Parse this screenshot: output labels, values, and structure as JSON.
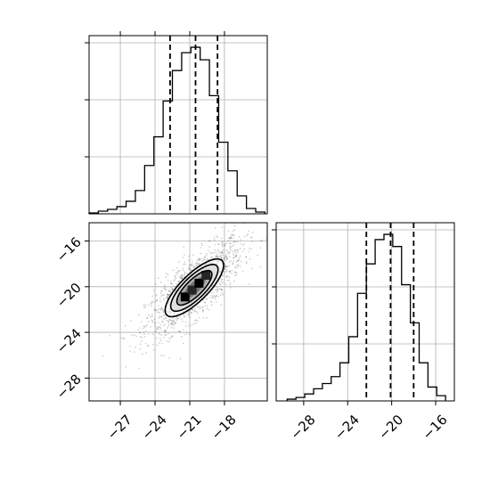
{
  "chart_data": [
    {
      "type": "histogram",
      "panel": "marginal-x",
      "title": "",
      "xlabel": "",
      "ylabel": "",
      "xlim": [
        -29.7,
        -14.3
      ],
      "grid": true,
      "bin_edges": [
        -29.7,
        -28.9,
        -28.1,
        -27.3,
        -26.5,
        -25.7,
        -24.9,
        -24.1,
        -23.3,
        -22.5,
        -21.7,
        -20.9,
        -20.1,
        -19.3,
        -18.5,
        -17.7,
        -16.9,
        -16.1,
        -15.3,
        -14.5
      ],
      "counts": [
        0.5,
        1.5,
        2.5,
        4,
        7,
        13,
        27,
        43,
        63,
        80,
        90,
        93,
        86,
        66,
        40,
        24,
        10,
        3,
        1
      ],
      "quantile_lines": [
        -22.7,
        -20.5,
        -18.6
      ]
    },
    {
      "type": "histogram",
      "panel": "marginal-y",
      "title": "",
      "xlabel": "",
      "ylabel": "",
      "xlim": [
        -30.5,
        -14.3
      ],
      "xticks": [
        "−28",
        "−24",
        "−20",
        "−16"
      ],
      "xtick_values": [
        -28,
        -24,
        -20,
        -16
      ],
      "grid": true,
      "bin_edges": [
        -29.5,
        -28.7,
        -27.9,
        -27.1,
        -26.3,
        -25.5,
        -24.7,
        -23.9,
        -23.1,
        -22.3,
        -21.5,
        -20.7,
        -19.9,
        -19.1,
        -18.3,
        -17.5,
        -16.7,
        -15.9,
        -15.1
      ],
      "counts": [
        1,
        2,
        4,
        7,
        10,
        14,
        22,
        37,
        62,
        79,
        93,
        96,
        89,
        67,
        45,
        22,
        8,
        3
      ],
      "quantile_lines": [
        -22.3,
        -20.1,
        -18.0
      ]
    },
    {
      "type": "scatter",
      "panel": "joint",
      "title": "",
      "xlabel": "",
      "ylabel": "",
      "xlim": [
        -29.7,
        -14.3
      ],
      "ylim": [
        -30.0,
        -14.4
      ],
      "xticks": [
        "−27",
        "−24",
        "−21",
        "−18"
      ],
      "xtick_values": [
        -27,
        -24,
        -21,
        -18
      ],
      "yticks": [
        "−16",
        "−20",
        "−24",
        "−28"
      ],
      "ytick_values": [
        -16,
        -20,
        -24,
        -28
      ],
      "grid": true,
      "correlation": 0.78,
      "mean": [
        -20.6,
        -20.1
      ],
      "sd": [
        2.1,
        2.1
      ],
      "contour_levels": [
        "outer",
        "middle",
        "inner"
      ]
    }
  ],
  "colors": {
    "grid": "#b0b0b0",
    "points": "#000000",
    "contour": "#000000",
    "fill_levels": [
      "#ffffff",
      "#dedede",
      "#a9a9a9",
      "#6a6a6a",
      "#252525",
      "#000000"
    ]
  }
}
